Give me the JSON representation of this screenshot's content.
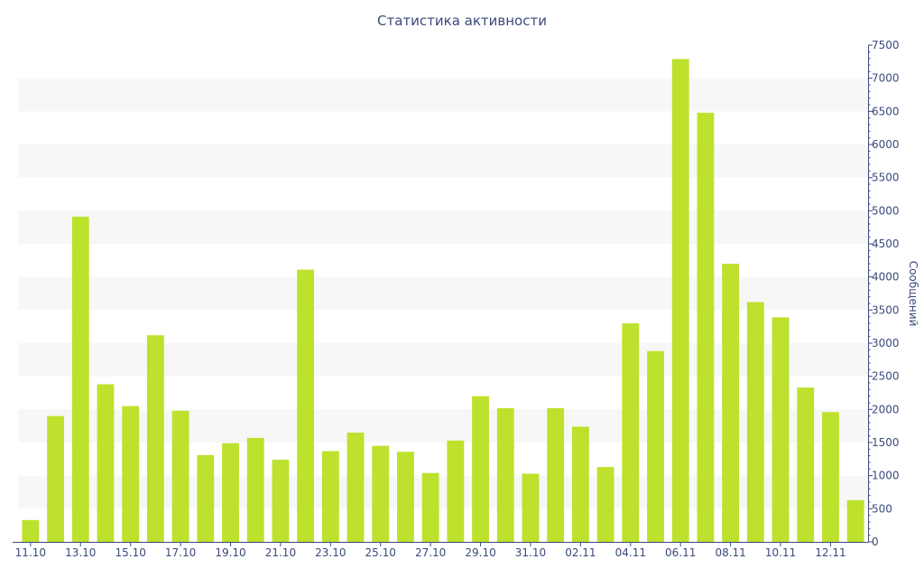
{
  "chart_data": {
    "type": "bar",
    "title": "Статистика активности",
    "xlabel": "",
    "ylabel": "Сообщений",
    "ylim": [
      0,
      7500
    ],
    "yticks": [
      0,
      500,
      1000,
      1500,
      2000,
      2500,
      3000,
      3500,
      4000,
      4500,
      5000,
      5500,
      6000,
      6500,
      7000,
      7500
    ],
    "y_axis_side": "right",
    "grid": "alternating horizontal bands",
    "categories": [
      "11.10",
      "12.10",
      "13.10",
      "14.10",
      "15.10",
      "16.10",
      "17.10",
      "18.10",
      "19.10",
      "20.10",
      "21.10",
      "22.10",
      "23.10",
      "24.10",
      "25.10",
      "26.10",
      "27.10",
      "28.10",
      "29.10",
      "30.10",
      "31.10",
      "01.11",
      "02.11",
      "03.11",
      "04.11",
      "05.11",
      "06.11",
      "07.11",
      "08.11",
      "09.11",
      "10.11",
      "11.11",
      "12.11",
      "13.11"
    ],
    "x_tick_labels": [
      "11.10",
      "",
      "13.10",
      "",
      "15.10",
      "",
      "17.10",
      "",
      "19.10",
      "",
      "21.10",
      "",
      "23.10",
      "",
      "25.10",
      "",
      "27.10",
      "",
      "29.10",
      "",
      "31.10",
      "",
      "02.11",
      "",
      "04.11",
      "",
      "06.11",
      "",
      "08.11",
      "",
      "10.11",
      "",
      "12.11",
      ""
    ],
    "values": [
      330,
      1900,
      4910,
      2380,
      2050,
      3120,
      1980,
      1310,
      1490,
      1570,
      1240,
      4110,
      1370,
      1650,
      1450,
      1360,
      1040,
      1530,
      2200,
      2020,
      1030,
      2020,
      1740,
      1130,
      3300,
      2880,
      7290,
      6480,
      4200,
      3620,
      3390,
      2330,
      1960,
      630
    ],
    "colors": {
      "bar": "#bde12d",
      "band": "#f7f7f7",
      "axis": "#3a4a7a"
    }
  }
}
